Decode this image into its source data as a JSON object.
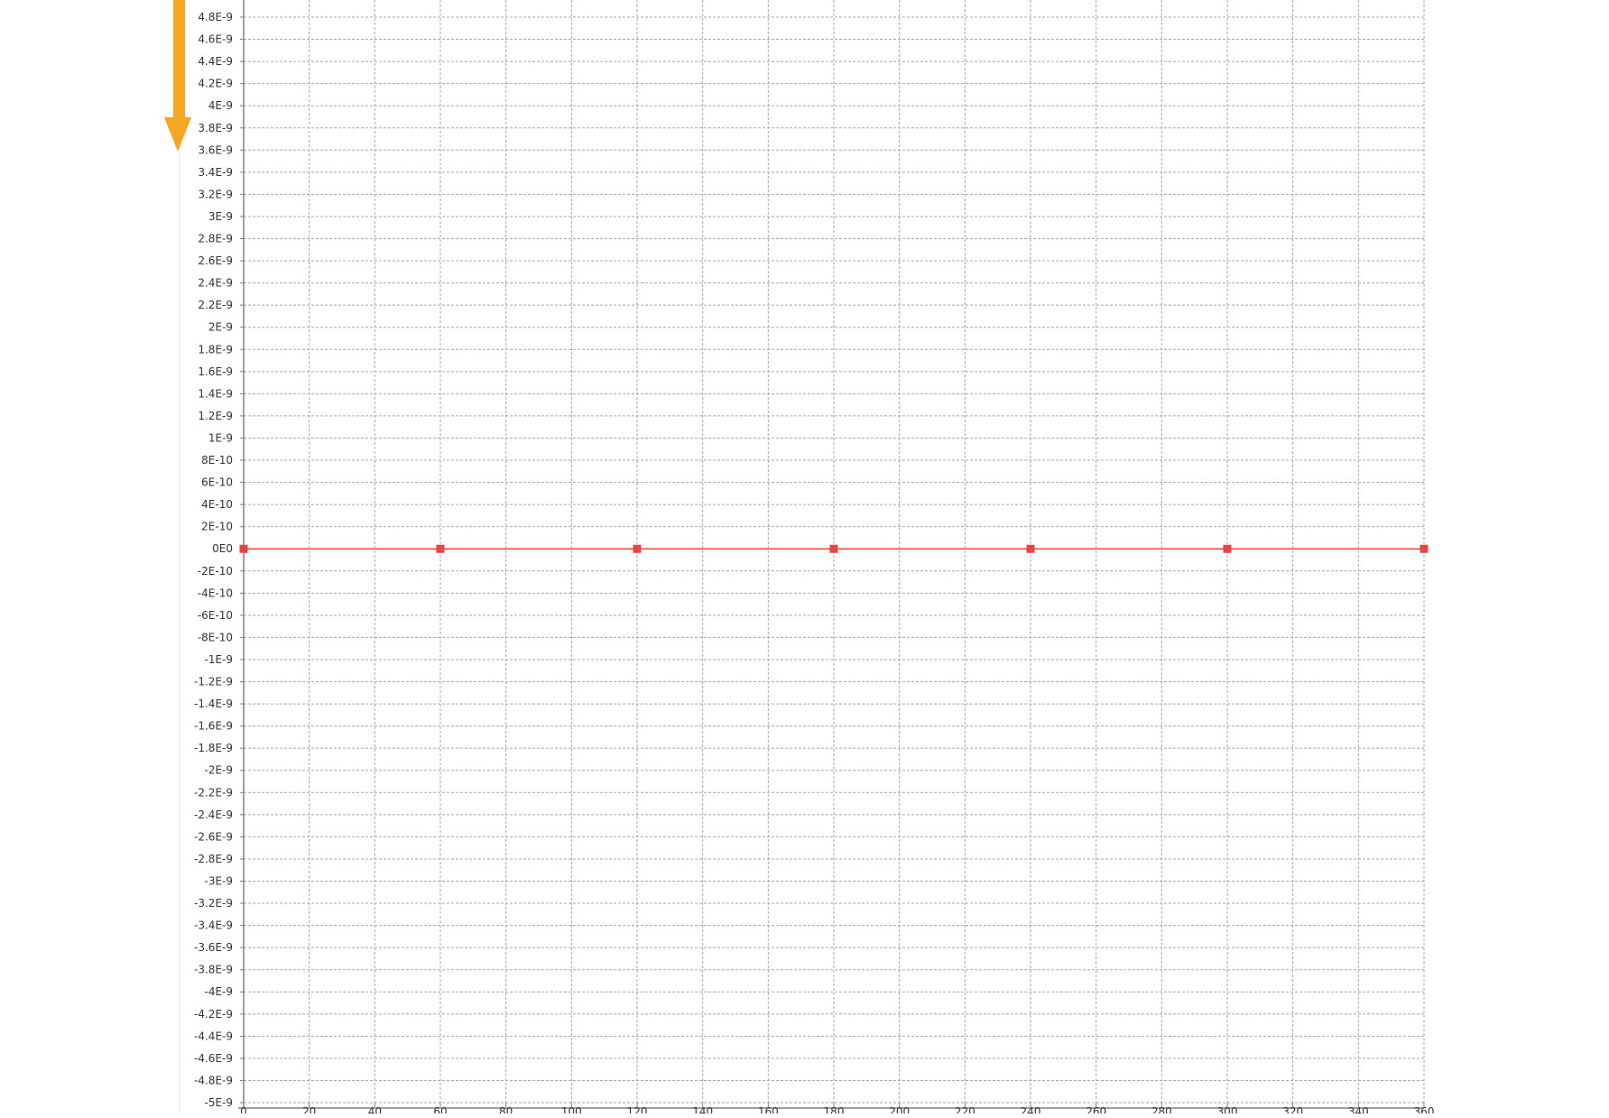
{
  "colors": {
    "background": "#ffffff",
    "grid": "#a8a8a8",
    "axis": "#808080",
    "series": "#e8453c",
    "arrow": "#f5a623",
    "tick_text": "#333333"
  },
  "annotation_icon": "arrow-down-icon",
  "chart_data": {
    "type": "line",
    "title": "",
    "xlabel": "",
    "ylabel": "",
    "grid": true,
    "xlim": [
      0,
      360
    ],
    "ylim": [
      -5e-09,
      4.8e-09
    ],
    "x_ticks": [
      0,
      20,
      40,
      60,
      80,
      100,
      120,
      140,
      160,
      180,
      200,
      220,
      240,
      260,
      280,
      300,
      320,
      340,
      360
    ],
    "y_tick_labels": [
      "4.8E-9",
      "4.6E-9",
      "4.4E-9",
      "4.2E-9",
      "4E-9",
      "3.8E-9",
      "3.6E-9",
      "3.4E-9",
      "3.2E-9",
      "3E-9",
      "2.8E-9",
      "2.6E-9",
      "2.4E-9",
      "2.2E-9",
      "2E-9",
      "1.8E-9",
      "1.6E-9",
      "1.4E-9",
      "1.2E-9",
      "1E-9",
      "8E-10",
      "6E-10",
      "4E-10",
      "2E-10",
      "0E0",
      "-2E-10",
      "-4E-10",
      "-6E-10",
      "-8E-10",
      "-1E-9",
      "-1.2E-9",
      "-1.4E-9",
      "-1.6E-9",
      "-1.8E-9",
      "-2E-9",
      "-2.2E-9",
      "-2.4E-9",
      "-2.6E-9",
      "-2.8E-9",
      "-3E-9",
      "-3.2E-9",
      "-3.4E-9",
      "-3.6E-9",
      "-3.8E-9",
      "-4E-9",
      "-4.2E-9",
      "-4.4E-9",
      "-4.6E-9",
      "-4.8E-9",
      "-5E-9"
    ],
    "series": [
      {
        "x": [
          0,
          60,
          120,
          180,
          240,
          300,
          360
        ],
        "y": [
          0,
          0,
          0,
          0,
          0,
          0,
          0
        ]
      }
    ]
  }
}
